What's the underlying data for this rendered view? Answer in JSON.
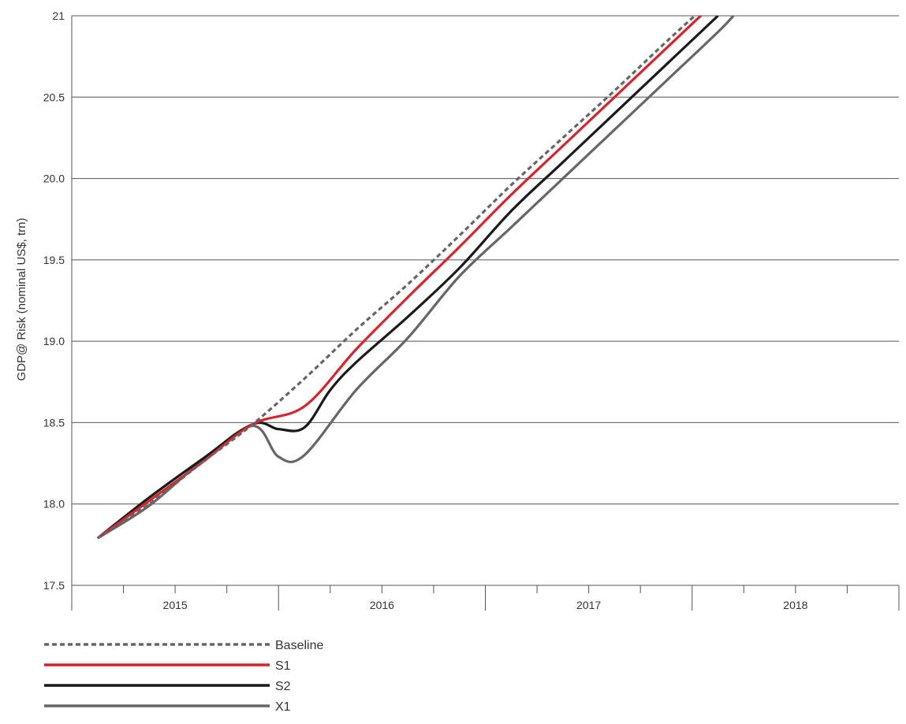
{
  "chart_data": {
    "type": "line",
    "title": "",
    "xlabel": "",
    "ylabel": "GDP@ Risk (nominal US$, trn)",
    "ylim": [
      17.5,
      21
    ],
    "y_ticks": [
      "17.5",
      "18.0",
      "18.5",
      "19.0",
      "19.5",
      "20.0",
      "20.5",
      "21"
    ],
    "y_tick_values": [
      17.5,
      18.0,
      18.5,
      19.0,
      19.5,
      20.0,
      20.5,
      21.0
    ],
    "x_categories": [
      "2015",
      "2016",
      "2017",
      "2018"
    ],
    "x_quarter_range": [
      0,
      16
    ],
    "grid": "horizontal",
    "legend_position": "bottom-left",
    "series": [
      {
        "name": "Baseline",
        "color": "#666666",
        "dash": "dashed",
        "points": [
          [
            0.5,
            17.79
          ],
          [
            1.5,
            18.0
          ],
          [
            2.5,
            18.25
          ],
          [
            3.5,
            18.49
          ],
          [
            4.5,
            18.77
          ],
          [
            5.5,
            19.07
          ],
          [
            6.5,
            19.35
          ],
          [
            7.5,
            19.65
          ],
          [
            8.5,
            19.96
          ],
          [
            9.5,
            20.25
          ],
          [
            10.5,
            20.54
          ],
          [
            11.5,
            20.84
          ],
          [
            12.5,
            21.13
          ]
        ]
      },
      {
        "name": "S1",
        "color": "#d8232a",
        "dash": "solid",
        "points": [
          [
            0.5,
            17.79
          ],
          [
            1.5,
            18.02
          ],
          [
            2.5,
            18.25
          ],
          [
            3.5,
            18.49
          ],
          [
            4.5,
            18.6
          ],
          [
            5.5,
            18.95
          ],
          [
            6.5,
            19.27
          ],
          [
            7.5,
            19.58
          ],
          [
            8.5,
            19.9
          ],
          [
            9.5,
            20.2
          ],
          [
            10.5,
            20.5
          ],
          [
            11.5,
            20.8
          ],
          [
            12.5,
            21.1
          ]
        ]
      },
      {
        "name": "S2",
        "color": "#1a1a1a",
        "dash": "solid",
        "points": [
          [
            0.5,
            17.79
          ],
          [
            1.5,
            18.04
          ],
          [
            2.5,
            18.27
          ],
          [
            3.5,
            18.49
          ],
          [
            4.0,
            18.46
          ],
          [
            4.5,
            18.47
          ],
          [
            5.0,
            18.7
          ],
          [
            5.5,
            18.87
          ],
          [
            6.5,
            19.15
          ],
          [
            7.5,
            19.45
          ],
          [
            8.5,
            19.8
          ],
          [
            9.5,
            20.1
          ],
          [
            10.5,
            20.4
          ],
          [
            11.5,
            20.7
          ],
          [
            12.5,
            21.0
          ]
        ]
      },
      {
        "name": "X1",
        "color": "#666666",
        "dash": "solid",
        "points": [
          [
            0.5,
            17.79
          ],
          [
            1.5,
            17.99
          ],
          [
            2.5,
            18.26
          ],
          [
            3.5,
            18.48
          ],
          [
            4.0,
            18.29
          ],
          [
            4.5,
            18.3
          ],
          [
            5.5,
            18.7
          ],
          [
            6.5,
            19.02
          ],
          [
            7.5,
            19.4
          ],
          [
            8.5,
            19.7
          ],
          [
            9.5,
            20.0
          ],
          [
            10.5,
            20.3
          ],
          [
            11.5,
            20.6
          ],
          [
            12.5,
            20.9
          ],
          [
            12.8,
            21.0
          ]
        ]
      }
    ]
  }
}
